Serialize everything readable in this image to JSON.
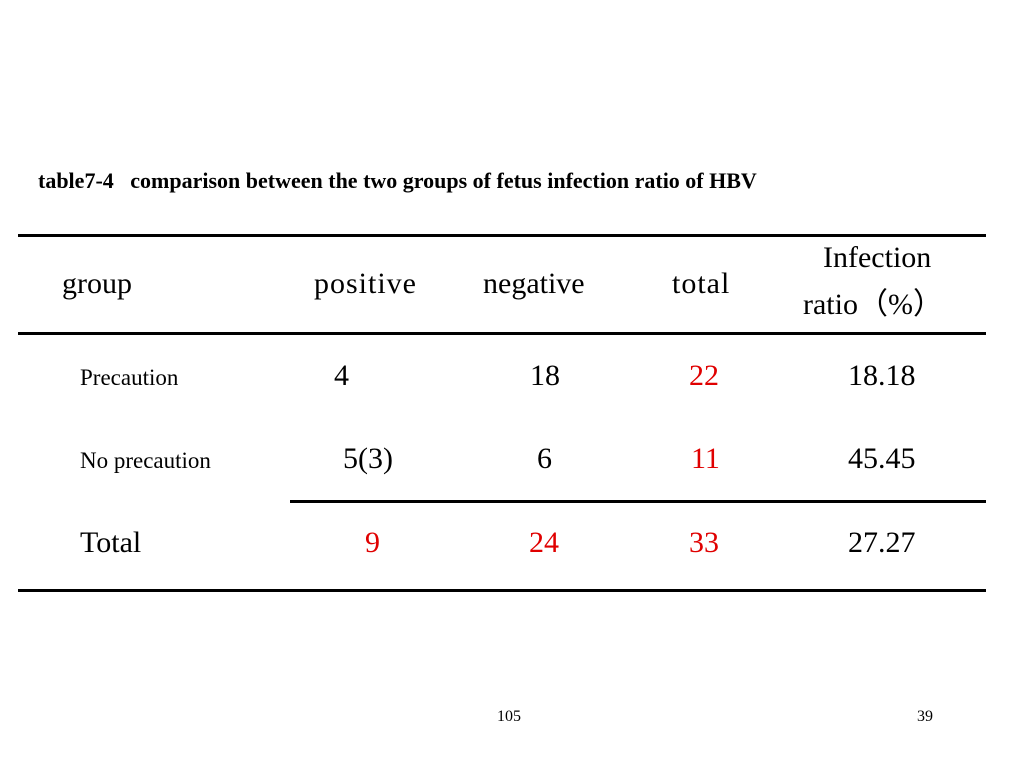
{
  "caption": {
    "label": "table7-4",
    "title": "comparison between the two groups of fetus infection ratio of HBV"
  },
  "table": {
    "headers": {
      "group": "group",
      "positive": "positive",
      "negative": "negative",
      "total": "total",
      "ratio_line1": "Infection",
      "ratio_line2": "ratio（%）"
    },
    "rows": [
      {
        "group": "Precaution",
        "positive": "4",
        "negative": "18",
        "total": "22",
        "ratio": "18.18"
      },
      {
        "group": "No precaution",
        "positive": "5(3)",
        "negative": "6",
        "total": "11",
        "ratio": "45.45"
      },
      {
        "group": "Total",
        "positive": "9",
        "negative": "24",
        "total": "33",
        "ratio": "27.27"
      }
    ]
  },
  "highlight_color": "#e00000",
  "footer": {
    "center": "105",
    "page_number": "39"
  }
}
